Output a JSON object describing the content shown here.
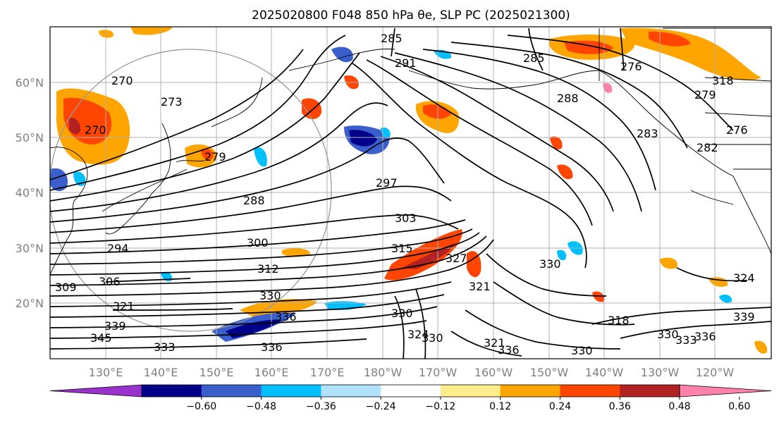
{
  "title": "2025020800 F048 850 hPa θe, SLP PC (2025021300)",
  "map": {
    "lat_labels": [
      "60°N",
      "50°N",
      "40°N",
      "30°N",
      "20°N"
    ],
    "lon_labels": [
      "130°E",
      "140°E",
      "150°E",
      "160°E",
      "170°E",
      "180°W",
      "170°W",
      "160°W",
      "150°W",
      "140°W",
      "130°W",
      "120°W"
    ],
    "contour_labels": [
      "270",
      "273",
      "279",
      "288",
      "297",
      "303",
      "291",
      "285",
      "288",
      "283",
      "282",
      "279",
      "276",
      "270",
      "294",
      "300",
      "312",
      "315",
      "306",
      "309",
      "321",
      "330",
      "327",
      "321",
      "339",
      "345",
      "333",
      "336",
      "330",
      "324",
      "336",
      "330",
      "321",
      "336",
      "330",
      "318",
      "330",
      "333",
      "336",
      "339",
      "324",
      "318",
      "276",
      "285",
      "330"
    ]
  },
  "colorbar": {
    "tick_labels": [
      "−0.60",
      "−0.48",
      "−0.36",
      "−0.24",
      "−0.12",
      "0.12",
      "0.24",
      "0.36",
      "0.48",
      "0.60"
    ],
    "colors": [
      "#9932CC",
      "#00008B",
      "#3A5FCD",
      "#00BFFF",
      "#B0E2FF",
      "#FFFFFF",
      "#FFEC8B",
      "#FFA500",
      "#FF4500",
      "#B22222",
      "#FF82AB"
    ]
  }
}
